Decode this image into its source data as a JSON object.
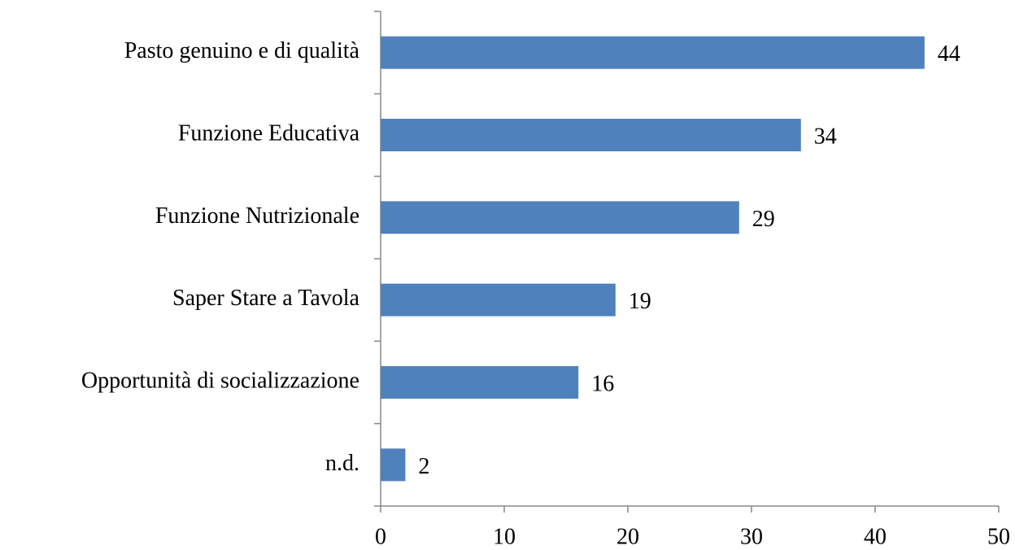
{
  "chart_data": {
    "type": "bar",
    "orientation": "horizontal",
    "categories": [
      "Pasto genuino e di qualità",
      "Funzione Educativa",
      "Funzione Nutrizionale",
      "Saper Stare a Tavola",
      "Opportunità di socializzazione",
      "n.d."
    ],
    "values": [
      44,
      34,
      29,
      19,
      16,
      2
    ],
    "color": "#4f81bd",
    "xlim": [
      0,
      50
    ],
    "xticks": [
      0,
      10,
      20,
      30,
      40,
      50
    ],
    "grid": false
  }
}
